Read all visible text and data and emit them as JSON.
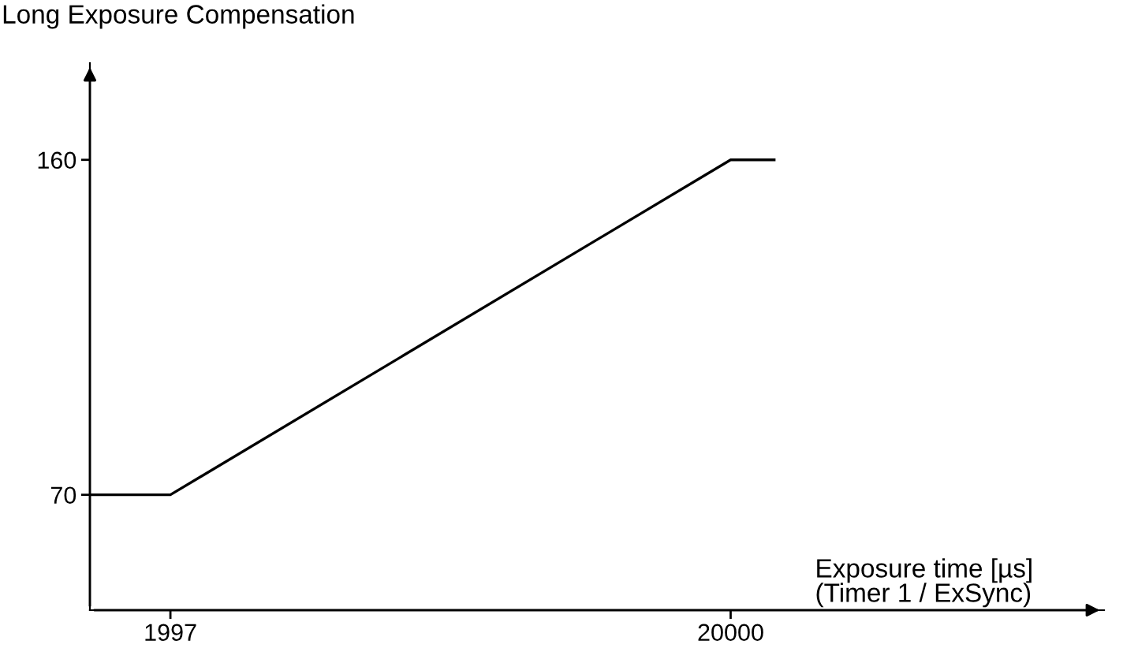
{
  "chart_data": {
    "type": "line",
    "xlabel": "Exposure time [µs]\n(Timer 1 / ExSync)",
    "ylabel": "Long Exposure Compensation",
    "series": [
      {
        "color": "#000000",
        "x": [
          -590,
          1997,
          20000,
          21400
        ],
        "values": [
          70,
          70,
          160,
          160
        ]
      }
    ],
    "xlim": [
      -590,
      32000
    ],
    "ylim": [
      39,
      186
    ],
    "xticks": [
      1997,
      20000
    ],
    "yticks": [
      70,
      160
    ],
    "grid": false,
    "marker": "none",
    "line_style": "solid"
  }
}
